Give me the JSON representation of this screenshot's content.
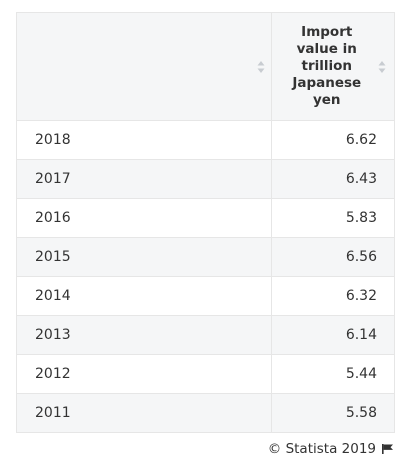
{
  "chart_data": {
    "type": "table",
    "columns": [
      "",
      "Import value in trillion Japanese yen"
    ],
    "categories": [
      "2018",
      "2017",
      "2016",
      "2015",
      "2014",
      "2013",
      "2012",
      "2011"
    ],
    "values": [
      6.62,
      6.43,
      5.83,
      6.56,
      6.32,
      6.14,
      5.44,
      5.58
    ],
    "rows": [
      {
        "year": "2018",
        "value": "6.62"
      },
      {
        "year": "2017",
        "value": "6.43"
      },
      {
        "year": "2016",
        "value": "5.83"
      },
      {
        "year": "2015",
        "value": "6.56"
      },
      {
        "year": "2014",
        "value": "6.32"
      },
      {
        "year": "2013",
        "value": "6.14"
      },
      {
        "year": "2012",
        "value": "5.44"
      },
      {
        "year": "2011",
        "value": "5.58"
      }
    ]
  },
  "header": {
    "value_label": "Import value in trillion Japanese yen"
  },
  "footer": {
    "credit": "© Statista 2019"
  },
  "icons": {
    "sort": "sort-icon",
    "flag": "flag-icon"
  },
  "colors": {
    "header_bg": "#f5f6f7",
    "stripe_bg": "#f5f6f7",
    "border": "#e6e6e6",
    "text": "#333333",
    "sort_arrow": "#c8ccd1"
  }
}
